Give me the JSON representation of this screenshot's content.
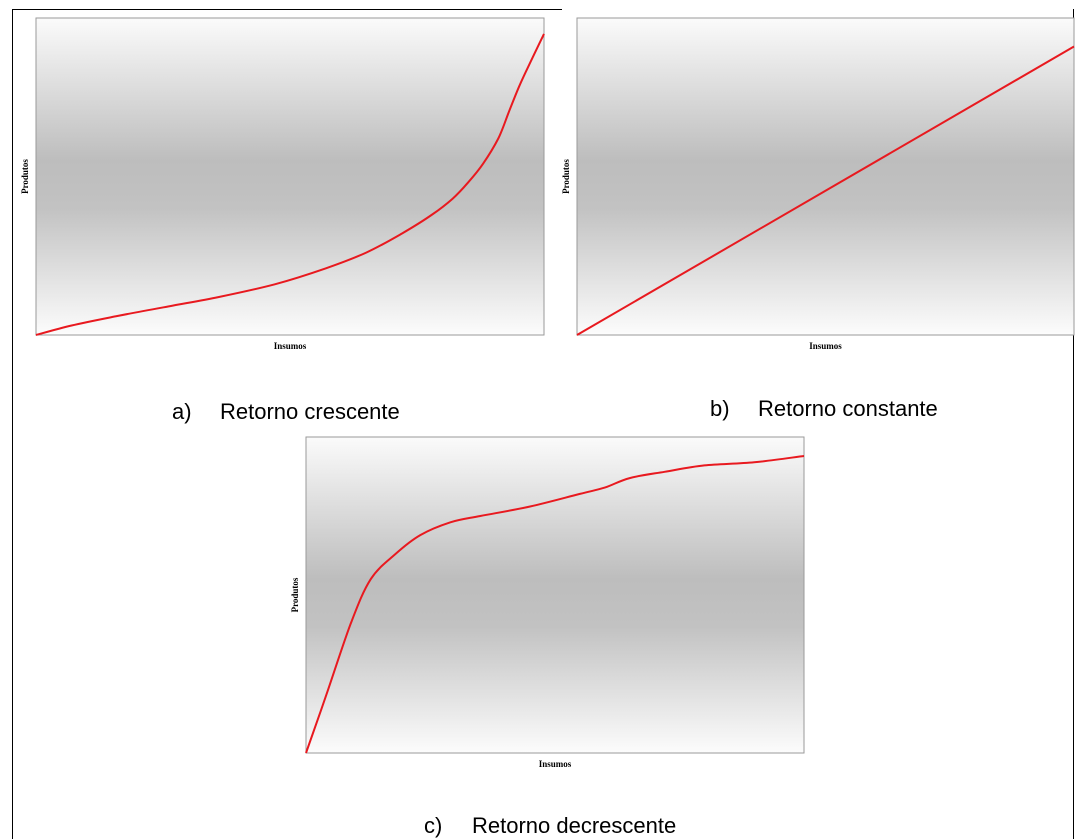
{
  "chart_data": [
    {
      "type": "line",
      "caption_letter": "a)",
      "caption_text": "Retorno crescente",
      "xlabel": "Insumos",
      "ylabel": "Produtos",
      "xlim": [
        0,
        100
      ],
      "ylim": [
        0,
        100
      ],
      "grid": false,
      "color": "#e8191f",
      "series": [
        {
          "x": [
            0,
            7,
            16,
            26,
            36,
            47,
            57,
            65,
            72,
            78,
            82,
            85,
            88,
            91,
            93,
            95,
            97,
            100
          ],
          "y": [
            0,
            3,
            6,
            9,
            12,
            16,
            21,
            26,
            32,
            38,
            43,
            48,
            54,
            62,
            70,
            78,
            85,
            95
          ]
        }
      ]
    },
    {
      "type": "line",
      "caption_letter": "b)",
      "caption_text": "Retorno constante",
      "xlabel": "Insumos",
      "ylabel": "Produtos",
      "xlim": [
        0,
        100
      ],
      "ylim": [
        0,
        100
      ],
      "grid": false,
      "color": "#e8191f",
      "series": [
        {
          "x": [
            0,
            100
          ],
          "y": [
            0,
            91
          ]
        }
      ]
    },
    {
      "type": "line",
      "caption_letter": "c)",
      "caption_text": "Retorno decrescente",
      "xlabel": "Insumos",
      "ylabel": "Produtos",
      "xlim": [
        0,
        100
      ],
      "ylim": [
        0,
        100
      ],
      "grid": false,
      "color": "#e8191f",
      "series": [
        {
          "x": [
            0,
            4,
            9,
            13,
            18,
            23,
            29,
            35,
            45,
            55,
            60,
            65,
            72,
            80,
            90,
            100
          ],
          "y": [
            0,
            18,
            41,
            55,
            63,
            69,
            73,
            75,
            78,
            82,
            84,
            87,
            89,
            91,
            92,
            94
          ]
        }
      ]
    }
  ]
}
